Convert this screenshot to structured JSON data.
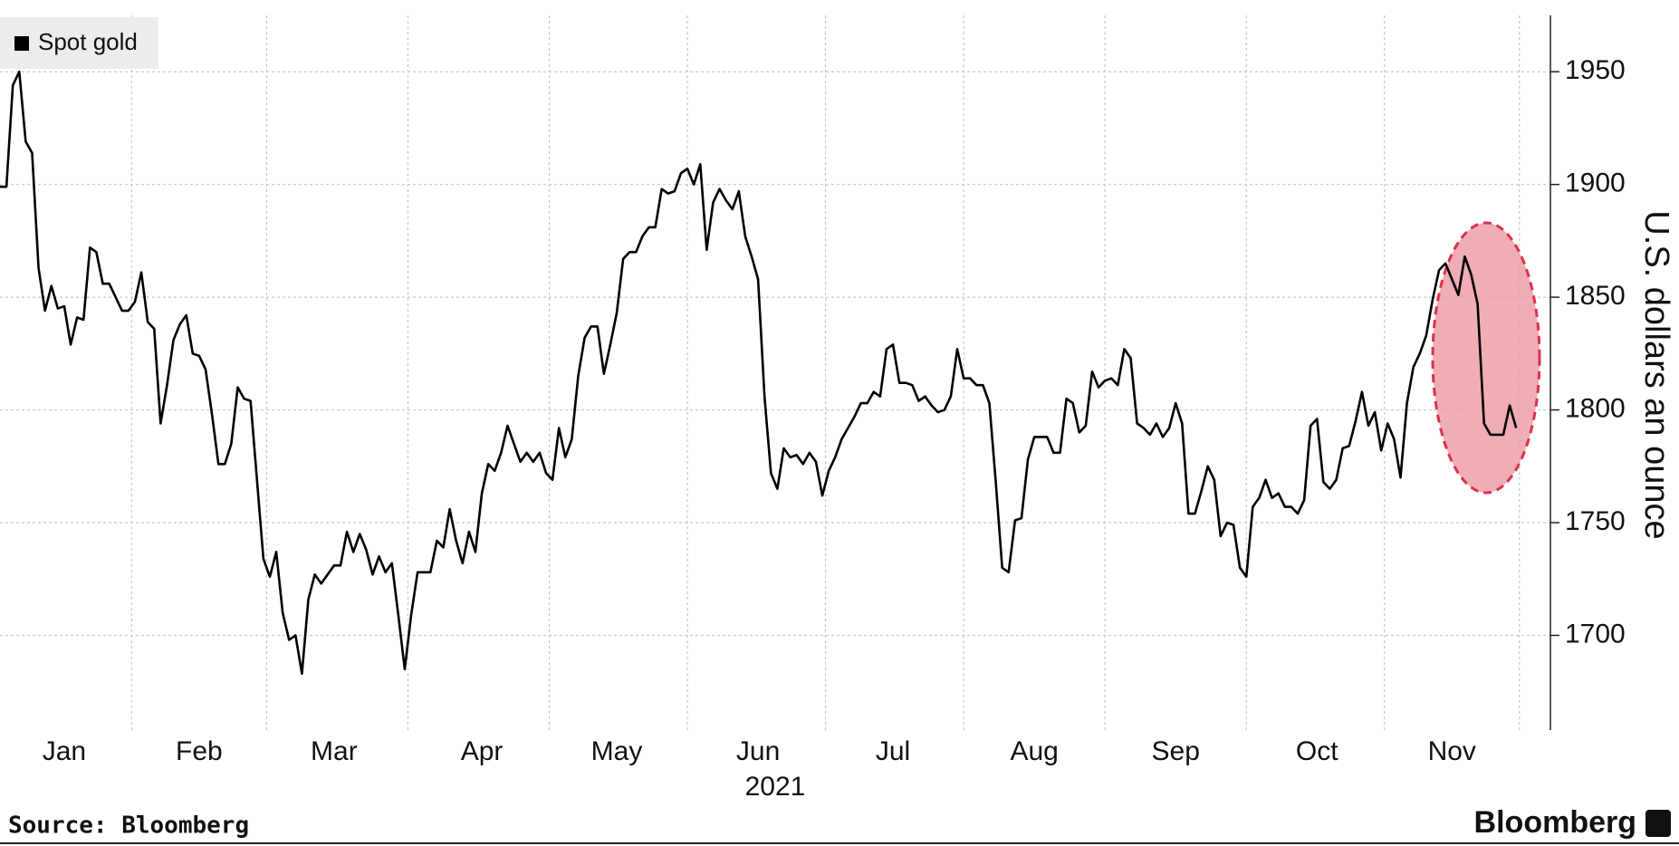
{
  "chart_data": {
    "type": "line",
    "categories": [
      null,
      null,
      null,
      null,
      null,
      null,
      null,
      null,
      null,
      null,
      "Jan",
      null,
      null,
      null,
      null,
      null,
      null,
      null,
      null,
      null,
      null,
      null,
      null,
      null,
      null,
      null,
      null,
      null,
      null,
      null,
      null,
      "Feb",
      null,
      null,
      null,
      null,
      null,
      null,
      null,
      null,
      null,
      null,
      null,
      null,
      null,
      null,
      null,
      null,
      null,
      null,
      null,
      null,
      "Mar",
      null,
      null,
      null,
      null,
      null,
      null,
      null,
      null,
      null,
      null,
      null,
      null,
      null,
      null,
      null,
      null,
      null,
      null,
      null,
      null,
      null,
      null,
      "Apr",
      null,
      null,
      null,
      null,
      null,
      null,
      null,
      null,
      null,
      null,
      null,
      null,
      null,
      null,
      null,
      null,
      null,
      null,
      null,
      null,
      "May",
      null,
      null,
      null,
      null,
      null,
      null,
      null,
      null,
      null,
      null,
      null,
      null,
      null,
      null,
      null,
      null,
      null,
      null,
      null,
      null,
      null,
      "Jun",
      null,
      null,
      null,
      null,
      null,
      null,
      null,
      null,
      null,
      null,
      null,
      null,
      null,
      null,
      null,
      null,
      null,
      null,
      null,
      null,
      "Jul",
      null,
      null,
      null,
      null,
      null,
      null,
      null,
      null,
      null,
      null,
      null,
      null,
      null,
      null,
      null,
      null,
      null,
      null,
      null,
      null,
      null,
      "Aug",
      null,
      null,
      null,
      null,
      null,
      null,
      null,
      null,
      null,
      null,
      null,
      null,
      null,
      null,
      null,
      null,
      null,
      null,
      null,
      null,
      null,
      "Sep",
      null,
      null,
      null,
      null,
      null,
      null,
      null,
      null,
      null,
      null,
      null,
      null,
      null,
      null,
      null,
      null,
      null,
      null,
      null,
      null,
      null,
      "Oct",
      null,
      null,
      null,
      null,
      null,
      null,
      null,
      null,
      null,
      null,
      null,
      null,
      null,
      null,
      null,
      null,
      null,
      null,
      null,
      null,
      "Nov",
      null,
      null,
      null,
      null,
      null,
      null,
      null,
      null,
      null,
      null
    ],
    "series": [
      {
        "name": "Spot gold",
        "color": "#000000",
        "values": [
          1899,
          1899,
          1944,
          1950,
          1919,
          1914,
          1863,
          1844,
          1855,
          1845,
          1846,
          1829,
          1841,
          1840,
          1872,
          1870,
          1856,
          1856,
          1850,
          1844,
          1844,
          1848,
          1861,
          1839,
          1836,
          1794,
          1811,
          1831,
          1838,
          1842,
          1825,
          1824,
          1818,
          1798,
          1776,
          1776,
          1785,
          1810,
          1805,
          1804,
          1769,
          1734,
          1726,
          1737,
          1710,
          1698,
          1700,
          1683,
          1716,
          1727,
          1723,
          1727,
          1731,
          1731,
          1746,
          1737,
          1745,
          1738,
          1727,
          1735,
          1728,
          1732,
          1709,
          1685,
          1709,
          1728,
          1728,
          1728,
          1742,
          1739,
          1756,
          1742,
          1732,
          1746,
          1737,
          1763,
          1776,
          1773,
          1781,
          1793,
          1785,
          1777,
          1781,
          1777,
          1781,
          1772,
          1769,
          1792,
          1779,
          1787,
          1815,
          1832,
          1837,
          1837,
          1816,
          1829,
          1843,
          1867,
          1870,
          1870,
          1877,
          1881,
          1881,
          1898,
          1896,
          1897,
          1905,
          1907,
          1900,
          1909,
          1871,
          1892,
          1898,
          1893,
          1889,
          1897,
          1877,
          1868,
          1858,
          1806,
          1772,
          1765,
          1783,
          1779,
          1780,
          1776,
          1781,
          1777,
          1762,
          1773,
          1779,
          1787,
          1792,
          1797,
          1803,
          1803,
          1808,
          1806,
          1827,
          1829,
          1812,
          1812,
          1811,
          1804,
          1806,
          1802,
          1799,
          1800,
          1806,
          1827,
          1814,
          1814,
          1811,
          1811,
          1803,
          1768,
          1730,
          1728,
          1751,
          1752,
          1778,
          1788,
          1788,
          1788,
          1781,
          1781,
          1805,
          1803,
          1790,
          1793,
          1817,
          1810,
          1813,
          1814,
          1811,
          1827,
          1823,
          1794,
          1792,
          1789,
          1794,
          1788,
          1792,
          1803,
          1794,
          1754,
          1754,
          1764,
          1775,
          1769,
          1744,
          1750,
          1749,
          1730,
          1726,
          1757,
          1761,
          1769,
          1761,
          1763,
          1757,
          1757,
          1754,
          1760,
          1793,
          1796,
          1768,
          1765,
          1769,
          1783,
          1784,
          1795,
          1808,
          1793,
          1799,
          1782,
          1794,
          1787,
          1770,
          1803,
          1819,
          1825,
          1833,
          1849,
          1862,
          1865,
          1858,
          1851,
          1868,
          1860,
          1847,
          1794,
          1789,
          1789,
          1789,
          1802,
          1792
        ]
      }
    ],
    "xlabel": "2021",
    "ylabel": "U.S. dollars an ounce",
    "ylim": [
      1658,
      1975
    ],
    "yticks": [
      1700,
      1750,
      1800,
      1850,
      1900,
      1950
    ],
    "grid": true,
    "legend": "top-left",
    "source": "Source: Bloomberg",
    "brand": "Bloomberg"
  }
}
